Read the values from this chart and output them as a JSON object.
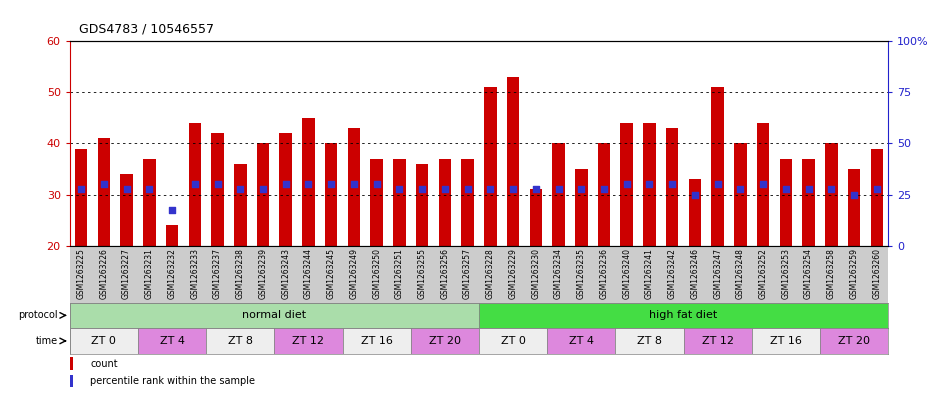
{
  "title": "GDS4783 / 10546557",
  "ylim_left": [
    20,
    60
  ],
  "yticks_left": [
    20,
    30,
    40,
    50,
    60
  ],
  "ytick_labels_right": [
    "0",
    "25",
    "50",
    "75",
    "100%"
  ],
  "bar_color": "#cc0000",
  "dot_color": "#3333cc",
  "samples": [
    "GSM1263225",
    "GSM1263226",
    "GSM1263227",
    "GSM1263231",
    "GSM1263232",
    "GSM1263233",
    "GSM1263237",
    "GSM1263238",
    "GSM1263239",
    "GSM1263243",
    "GSM1263244",
    "GSM1263245",
    "GSM1263249",
    "GSM1263250",
    "GSM1263251",
    "GSM1263255",
    "GSM1263256",
    "GSM1263257",
    "GSM1263228",
    "GSM1263229",
    "GSM1263230",
    "GSM1263234",
    "GSM1263235",
    "GSM1263236",
    "GSM1263240",
    "GSM1263241",
    "GSM1263242",
    "GSM1263246",
    "GSM1263247",
    "GSM1263248",
    "GSM1263252",
    "GSM1263253",
    "GSM1263254",
    "GSM1263258",
    "GSM1263259",
    "GSM1263260"
  ],
  "bar_tops": [
    39,
    41,
    34,
    37,
    24,
    44,
    42,
    36,
    40,
    42,
    45,
    40,
    43,
    37,
    37,
    36,
    37,
    37,
    51,
    53,
    31,
    40,
    35,
    40,
    44,
    44,
    43,
    33,
    51,
    40,
    44,
    37,
    37,
    40,
    35,
    39
  ],
  "dot_values": [
    31,
    32,
    31,
    31,
    27,
    32,
    32,
    31,
    31,
    32,
    32,
    32,
    32,
    32,
    31,
    31,
    31,
    31,
    31,
    31,
    31,
    31,
    31,
    31,
    32,
    32,
    32,
    30,
    32,
    31,
    32,
    31,
    31,
    31,
    30,
    31
  ],
  "protocol_groups": [
    {
      "label": "normal diet",
      "start": 0,
      "end": 18,
      "color": "#aaddaa"
    },
    {
      "label": "high fat diet",
      "start": 18,
      "end": 36,
      "color": "#44dd44"
    }
  ],
  "time_groups": [
    {
      "label": "ZT 0",
      "start": 0,
      "end": 3,
      "color": "#eeeeee"
    },
    {
      "label": "ZT 4",
      "start": 3,
      "end": 6,
      "color": "#dd88dd"
    },
    {
      "label": "ZT 8",
      "start": 6,
      "end": 9,
      "color": "#eeeeee"
    },
    {
      "label": "ZT 12",
      "start": 9,
      "end": 12,
      "color": "#dd88dd"
    },
    {
      "label": "ZT 16",
      "start": 12,
      "end": 15,
      "color": "#eeeeee"
    },
    {
      "label": "ZT 20",
      "start": 15,
      "end": 18,
      "color": "#dd88dd"
    },
    {
      "label": "ZT 0",
      "start": 18,
      "end": 21,
      "color": "#eeeeee"
    },
    {
      "label": "ZT 4",
      "start": 21,
      "end": 24,
      "color": "#dd88dd"
    },
    {
      "label": "ZT 8",
      "start": 24,
      "end": 27,
      "color": "#eeeeee"
    },
    {
      "label": "ZT 12",
      "start": 27,
      "end": 30,
      "color": "#dd88dd"
    },
    {
      "label": "ZT 16",
      "start": 30,
      "end": 33,
      "color": "#eeeeee"
    },
    {
      "label": "ZT 20",
      "start": 33,
      "end": 36,
      "color": "#dd88dd"
    }
  ],
  "bar_bottom": 20,
  "bar_width": 0.55,
  "dot_size": 18,
  "ylabel_left_color": "#cc0000",
  "ylabel_right_color": "#2222cc",
  "xtick_bg_color": "#cccccc",
  "grid_color": "#000000",
  "fig_bg_color": "#ffffff"
}
